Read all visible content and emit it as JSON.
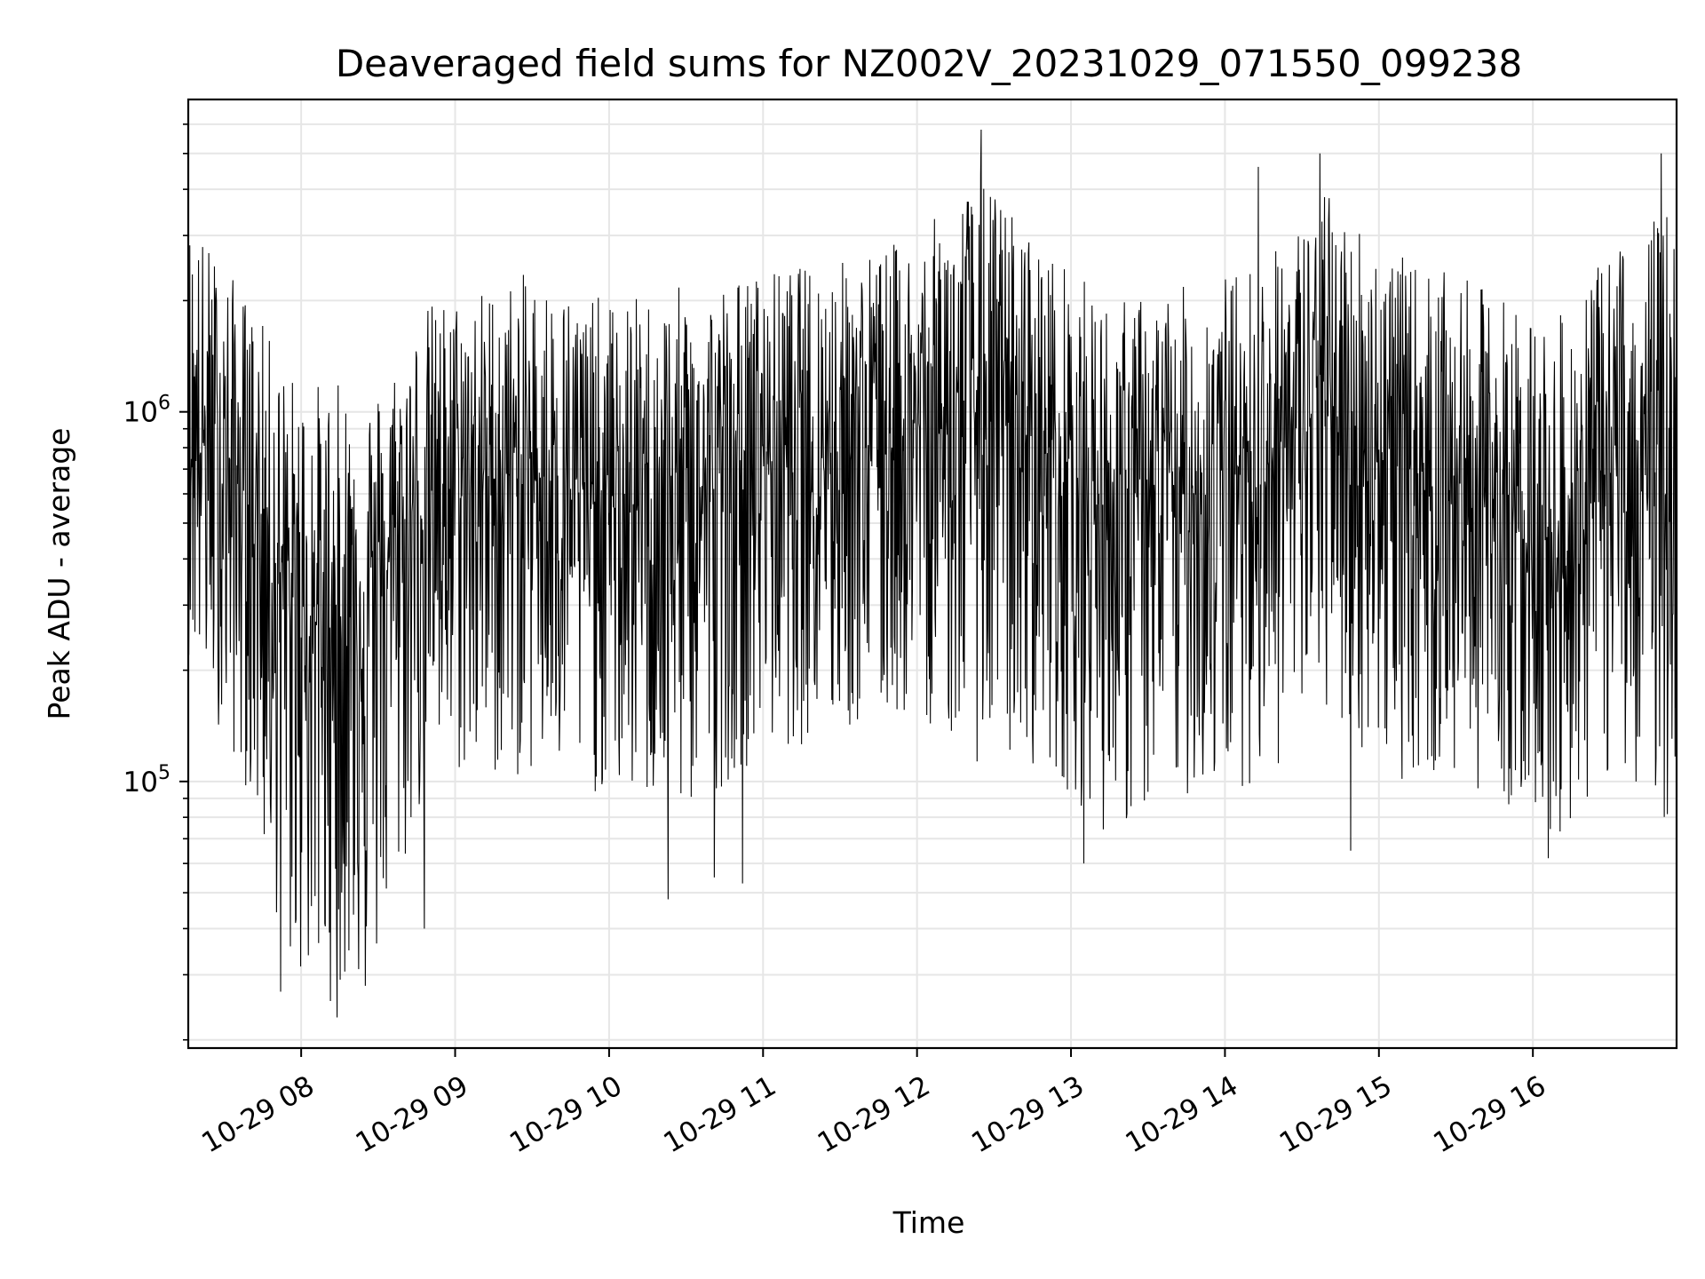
{
  "chart_data": {
    "type": "line",
    "title": "Deaveraged field sums for NZ002V_20231029_071550_099238",
    "xlabel": "Time",
    "ylabel": "Peak ADU - average",
    "x_scale": "time",
    "y_scale": "log",
    "xlim": [
      "2023-10-29T07:16:00",
      "2023-10-29T16:56:00"
    ],
    "ylim": [
      19000,
      7000000
    ],
    "grid": true,
    "grid_color": "#e6e6e6",
    "line_color": "#000000",
    "x_ticks": [
      {
        "value": "2023-10-29T08:00:00",
        "label": "10-29 08"
      },
      {
        "value": "2023-10-29T09:00:00",
        "label": "10-29 09"
      },
      {
        "value": "2023-10-29T10:00:00",
        "label": "10-29 10"
      },
      {
        "value": "2023-10-29T11:00:00",
        "label": "10-29 11"
      },
      {
        "value": "2023-10-29T12:00:00",
        "label": "10-29 12"
      },
      {
        "value": "2023-10-29T13:00:00",
        "label": "10-29 13"
      },
      {
        "value": "2023-10-29T14:00:00",
        "label": "10-29 14"
      },
      {
        "value": "2023-10-29T15:00:00",
        "label": "10-29 15"
      },
      {
        "value": "2023-10-29T16:00:00",
        "label": "10-29 16"
      }
    ],
    "y_ticks_major": [
      {
        "value": 100000,
        "label_base": "10",
        "label_exp": "5"
      },
      {
        "value": 1000000,
        "label_base": "10",
        "label_exp": "6"
      }
    ],
    "y_ticks_minor": [
      20000,
      30000,
      40000,
      50000,
      60000,
      70000,
      80000,
      90000,
      200000,
      300000,
      400000,
      500000,
      600000,
      700000,
      800000,
      900000,
      2000000,
      3000000,
      4000000,
      5000000,
      6000000
    ],
    "series": [
      {
        "style": "dense-noise",
        "envelope": [
          {
            "x": "2023-10-29T07:16:00",
            "median": 900000,
            "high": 3500000,
            "low": 220000
          },
          {
            "x": "2023-10-29T07:40:00",
            "median": 600000,
            "high": 2000000,
            "low": 90000
          },
          {
            "x": "2023-10-29T07:55:00",
            "median": 300000,
            "high": 1300000,
            "low": 30000
          },
          {
            "x": "2023-10-29T08:10:00",
            "median": 260000,
            "high": 1200000,
            "low": 25000
          },
          {
            "x": "2023-10-29T08:30:00",
            "median": 350000,
            "high": 1200000,
            "low": 30000
          },
          {
            "x": "2023-10-29T08:50:00",
            "median": 600000,
            "high": 2000000,
            "low": 100000
          },
          {
            "x": "2023-10-29T09:30:00",
            "median": 700000,
            "high": 2400000,
            "low": 100000
          },
          {
            "x": "2023-10-29T10:00:00",
            "median": 550000,
            "high": 2000000,
            "low": 90000
          },
          {
            "x": "2023-10-29T10:30:00",
            "median": 550000,
            "high": 2200000,
            "low": 80000
          },
          {
            "x": "2023-10-29T11:00:00",
            "median": 800000,
            "high": 2400000,
            "low": 120000
          },
          {
            "x": "2023-10-29T11:30:00",
            "median": 850000,
            "high": 2600000,
            "low": 130000
          },
          {
            "x": "2023-10-29T12:00:00",
            "median": 900000,
            "high": 3000000,
            "low": 150000
          },
          {
            "x": "2023-10-29T12:25:00",
            "median": 1000000,
            "high": 4500000,
            "low": 110000
          },
          {
            "x": "2023-10-29T12:50:00",
            "median": 800000,
            "high": 2800000,
            "low": 110000
          },
          {
            "x": "2023-10-29T13:15:00",
            "median": 550000,
            "high": 2000000,
            "low": 70000
          },
          {
            "x": "2023-10-29T13:45:00",
            "median": 600000,
            "high": 2200000,
            "low": 90000
          },
          {
            "x": "2023-10-29T14:15:00",
            "median": 750000,
            "high": 2600000,
            "low": 100000
          },
          {
            "x": "2023-10-29T14:40:00",
            "median": 1000000,
            "high": 4000000,
            "low": 140000
          },
          {
            "x": "2023-10-29T15:10:00",
            "median": 700000,
            "high": 2600000,
            "low": 100000
          },
          {
            "x": "2023-10-29T15:40:00",
            "median": 600000,
            "high": 2200000,
            "low": 95000
          },
          {
            "x": "2023-10-29T16:10:00",
            "median": 400000,
            "high": 1800000,
            "low": 70000
          },
          {
            "x": "2023-10-29T16:35:00",
            "median": 750000,
            "high": 3000000,
            "low": 110000
          },
          {
            "x": "2023-10-29T16:56:00",
            "median": 500000,
            "high": 3800000,
            "low": 70000
          }
        ],
        "spikes": [
          {
            "x": "2023-10-29T12:25:00",
            "value": 5800000
          },
          {
            "x": "2023-10-29T14:37:00",
            "value": 5000000
          },
          {
            "x": "2023-10-29T16:50:00",
            "value": 5000000
          },
          {
            "x": "2023-10-29T14:13:00",
            "value": 4600000
          },
          {
            "x": "2023-10-29T08:14:00",
            "value": 23000
          },
          {
            "x": "2023-10-29T07:52:00",
            "value": 27000
          },
          {
            "x": "2023-10-29T08:25:00",
            "value": 28000
          },
          {
            "x": "2023-10-29T08:48:00",
            "value": 40000
          },
          {
            "x": "2023-10-29T10:23:00",
            "value": 48000
          },
          {
            "x": "2023-10-29T10:41:00",
            "value": 55000
          },
          {
            "x": "2023-10-29T10:52:00",
            "value": 53000
          },
          {
            "x": "2023-10-29T13:05:00",
            "value": 60000
          },
          {
            "x": "2023-10-29T14:49:00",
            "value": 65000
          },
          {
            "x": "2023-10-29T16:06:00",
            "value": 62000
          }
        ]
      }
    ]
  }
}
